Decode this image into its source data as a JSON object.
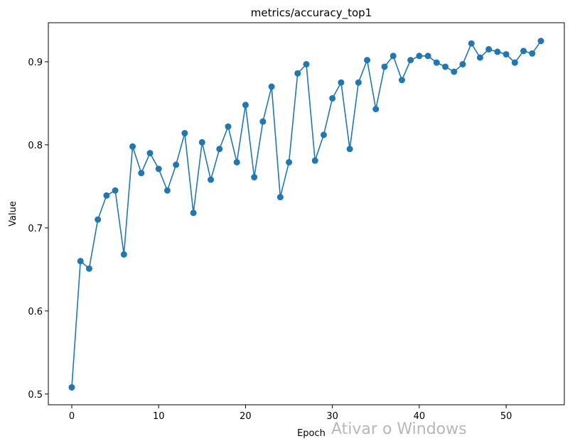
{
  "watermark": "Ativar o Windows",
  "chart_data": {
    "type": "line",
    "title": "metrics/accuracy_top1",
    "xlabel": "Epoch",
    "ylabel": "Value",
    "xlim": [
      -2.7,
      56.7
    ],
    "ylim": [
      0.487,
      0.947
    ],
    "xticks": [
      0,
      10,
      20,
      30,
      40,
      50
    ],
    "yticks": [
      0.5,
      0.6,
      0.7,
      0.8,
      0.9
    ],
    "line_color": "#1f77b4",
    "marker": "circle",
    "grid": false,
    "series": [
      {
        "x": [
          0,
          1,
          2,
          3,
          4,
          5,
          6,
          7,
          8,
          9,
          10,
          11,
          12,
          13,
          14,
          15,
          16,
          17,
          18,
          19,
          20,
          21,
          22,
          23,
          24,
          25,
          26,
          27,
          28,
          29,
          30,
          31,
          32,
          33,
          34,
          35,
          36,
          37,
          38,
          39,
          40,
          41,
          42,
          43,
          44,
          45,
          46,
          47,
          48,
          49,
          50,
          51,
          52,
          53,
          54
        ],
        "values": [
          0.508,
          0.66,
          0.651,
          0.71,
          0.739,
          0.745,
          0.668,
          0.798,
          0.766,
          0.79,
          0.771,
          0.745,
          0.776,
          0.814,
          0.718,
          0.803,
          0.758,
          0.795,
          0.822,
          0.779,
          0.848,
          0.761,
          0.828,
          0.87,
          0.737,
          0.779,
          0.886,
          0.897,
          0.781,
          0.812,
          0.856,
          0.875,
          0.795,
          0.875,
          0.902,
          0.843,
          0.894,
          0.907,
          0.878,
          0.902,
          0.907,
          0.907,
          0.899,
          0.894,
          0.888,
          0.897,
          0.922,
          0.905,
          0.915,
          0.912,
          0.909,
          0.899,
          0.913,
          0.91,
          0.925
        ]
      }
    ]
  }
}
